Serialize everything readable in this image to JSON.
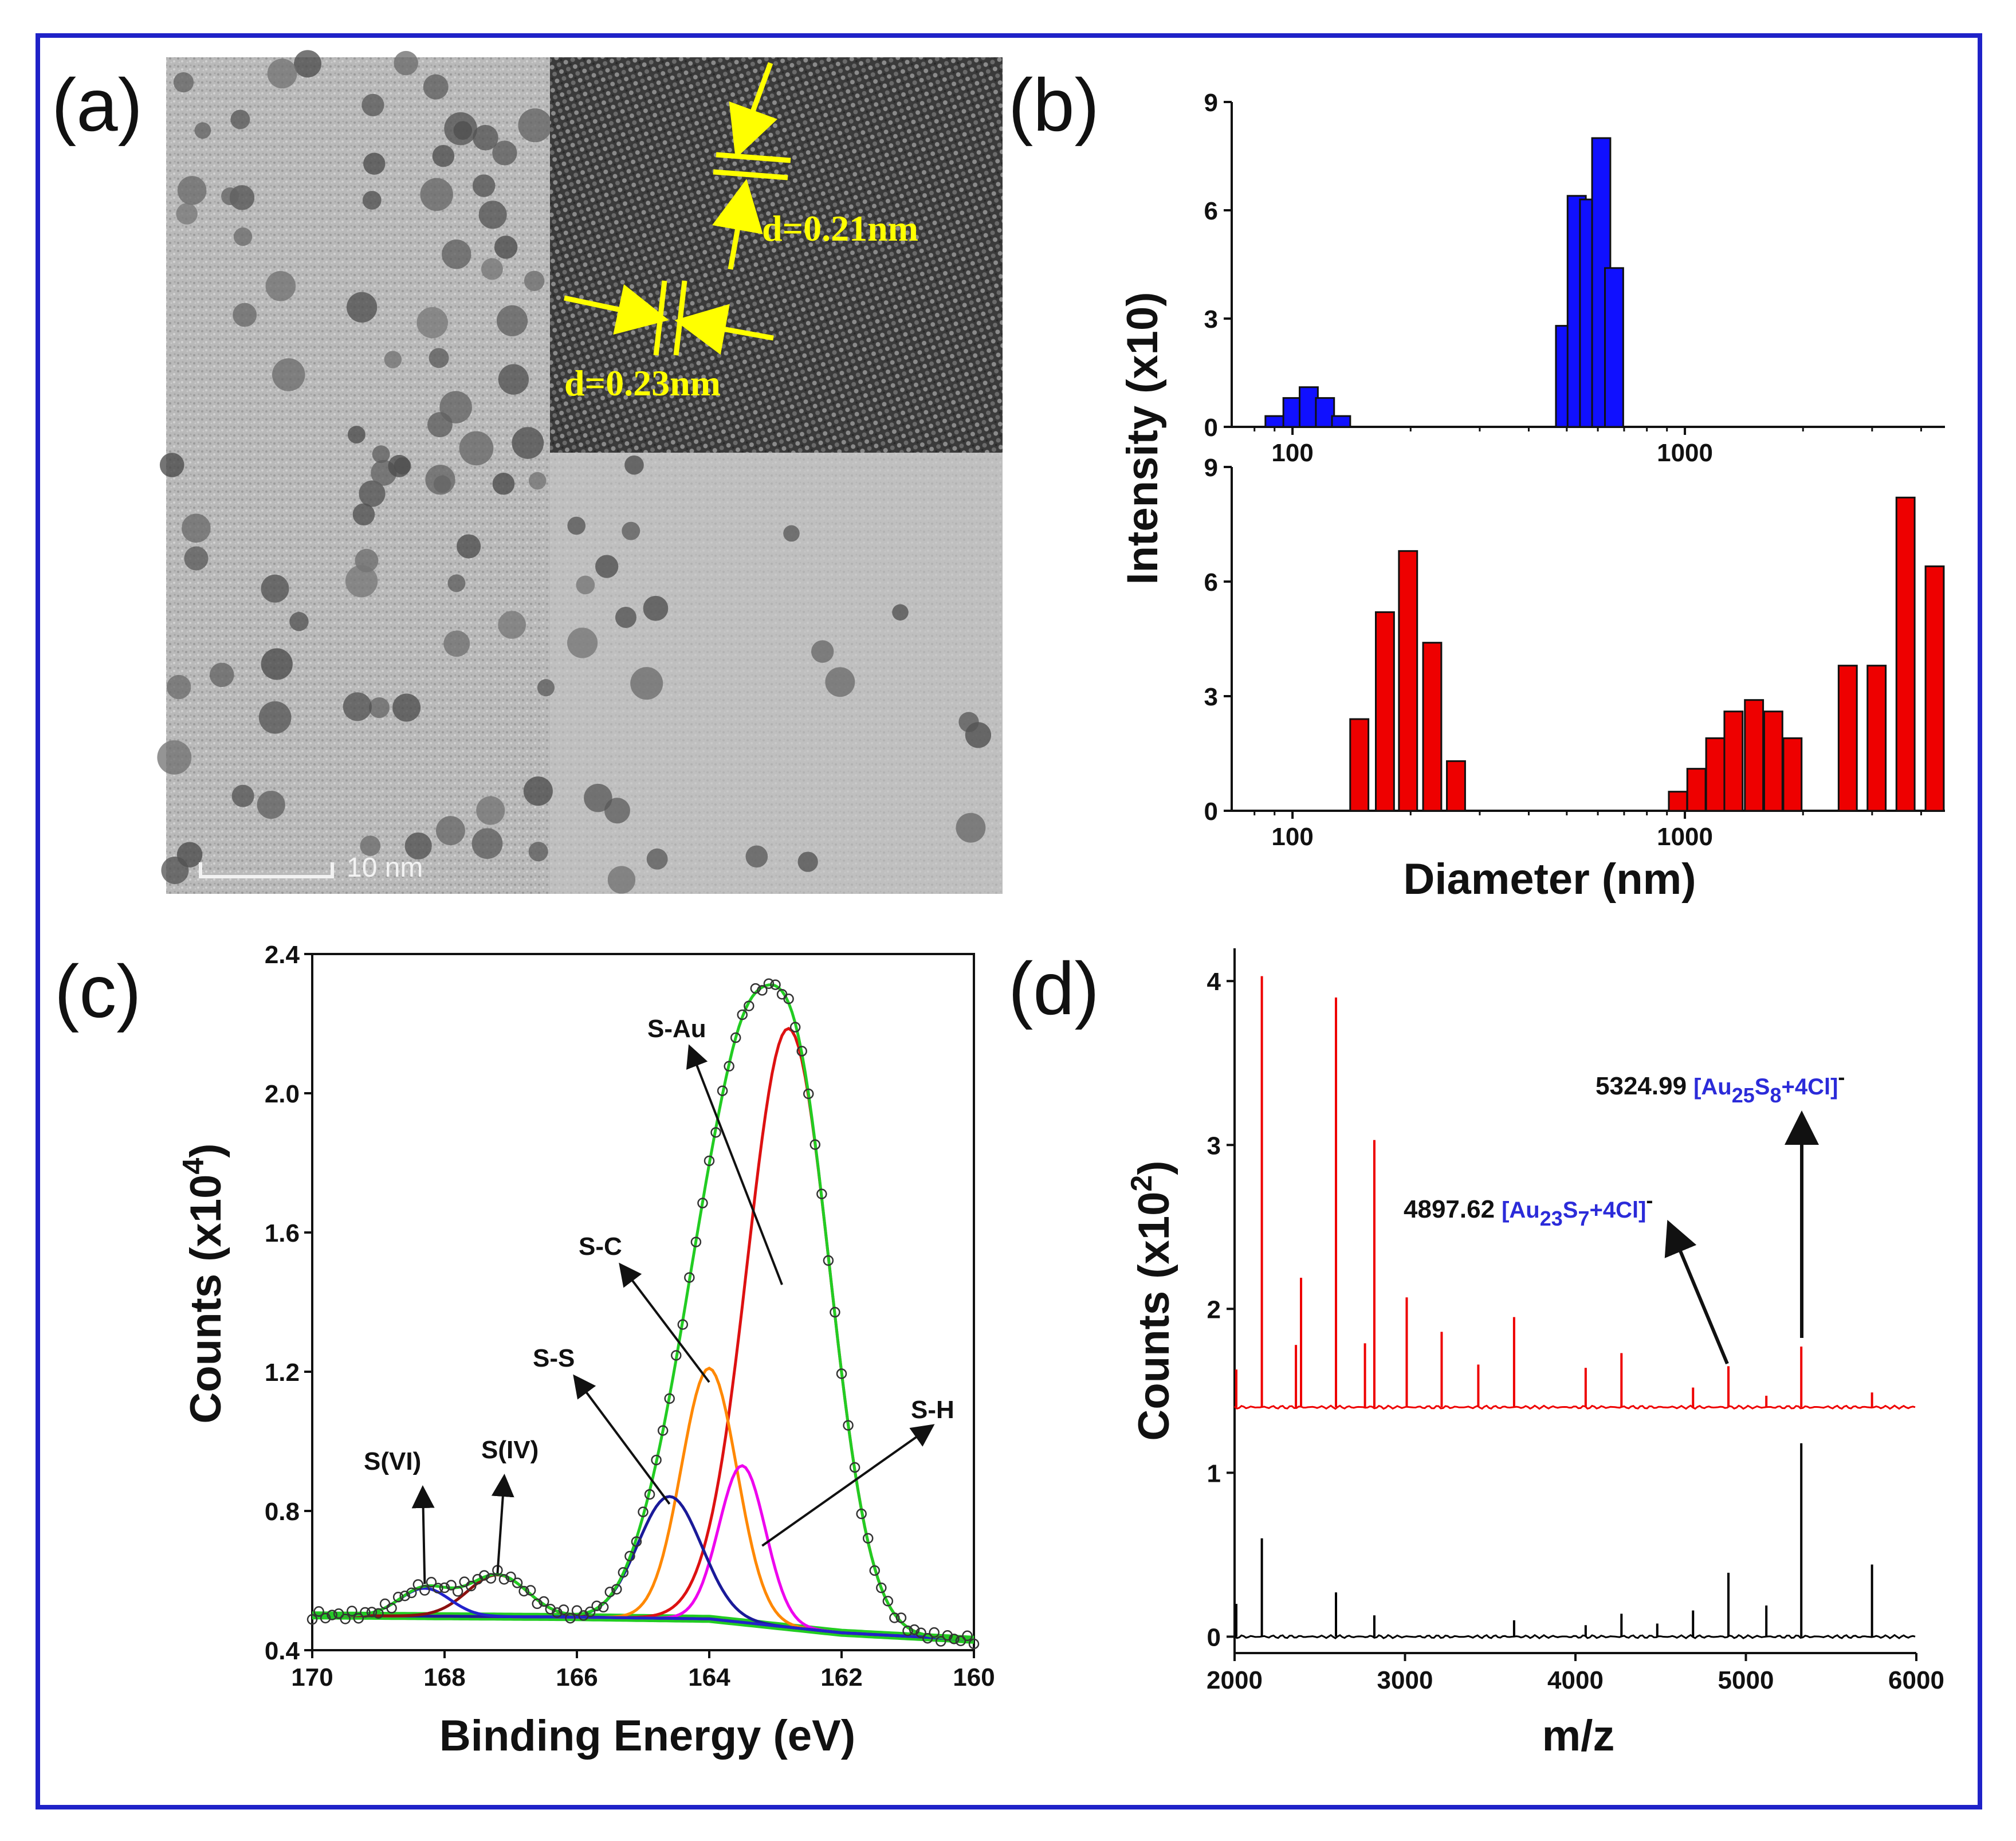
{
  "colors": {
    "frame": "#1f22c8",
    "blue_bar": "#1010ff",
    "red_bar": "#ee0000",
    "ms_blue": "#2b2bd9",
    "fit_green": "#22cc22",
    "s_au": "#dd1111",
    "s_c": "#ff8800",
    "s_h": "#ee00ee",
    "s_s": "#1a1a99",
    "s_iv": "#8b1010",
    "s_vi": "#2222cc",
    "baseline_black": "#000000"
  },
  "panels": {
    "a": {
      "label": "(a)",
      "scale_bar": "10 nm",
      "d1": "d=0.21nm",
      "d2": "d=0.23nm"
    },
    "b": {
      "label": "(b)",
      "ylabel": "Intensity (x10)",
      "xlabel": "Diameter (nm)"
    },
    "c": {
      "label": "(c)",
      "xlabel": "Binding Energy (eV)",
      "ylabel_main": "Counts (x10",
      "ylabel_sup": "4",
      "ylabel_end": ")",
      "peaks": {
        "s_au": "S-Au",
        "s_c": "S-C",
        "s_s": "S-S",
        "s_h": "S-H",
        "s_iv": "S(IV)",
        "s_vi": "S(VI)"
      }
    },
    "d": {
      "label": "(d)",
      "xlabel": "m/z",
      "ylabel_main": "Counts (x10",
      "ylabel_sup": "2",
      "ylabel_end": ")",
      "ann1_value": "5324.99",
      "ann1_open": "[Au",
      "ann1_sub1": "25",
      "ann1_mid": "S",
      "ann1_sub2": "8",
      "ann1_close": "+4Cl]",
      "ann1_sup": "-",
      "ann2_value": "4897.62",
      "ann2_open": "[Au",
      "ann2_sub1": "23",
      "ann2_mid": "S",
      "ann2_sub2": "7",
      "ann2_close": "+4Cl]",
      "ann2_sup": "-"
    }
  },
  "chart_data": [
    {
      "id": "b_top",
      "type": "bar",
      "xscale": "log",
      "title": "",
      "xlabel": "",
      "ylabel": "Intensity (x10)",
      "xlim": [
        70,
        4600
      ],
      "ylim": [
        0,
        9
      ],
      "xticks": [
        100,
        1000
      ],
      "xtick_labels": [
        "100",
        "1000"
      ],
      "yticks": [
        0,
        3,
        6,
        9
      ],
      "ytick_labels": [
        "0",
        "3",
        "6",
        "9"
      ],
      "series": [
        {
          "name": "blue",
          "bars": [
            {
              "x": 90,
              "y": 0.3
            },
            {
              "x": 100,
              "y": 0.8
            },
            {
              "x": 110,
              "y": 1.1
            },
            {
              "x": 121,
              "y": 0.8
            },
            {
              "x": 133,
              "y": 0.3
            },
            {
              "x": 495,
              "y": 2.8
            },
            {
              "x": 530,
              "y": 6.4
            },
            {
              "x": 570,
              "y": 6.3
            },
            {
              "x": 612,
              "y": 8.0
            },
            {
              "x": 660,
              "y": 4.4
            }
          ]
        }
      ]
    },
    {
      "id": "b_bottom",
      "type": "bar",
      "xscale": "log",
      "title": "",
      "xlabel": "Diameter (nm)",
      "ylabel": "Intensity (x10)",
      "xlim": [
        70,
        4600
      ],
      "ylim": [
        0,
        9
      ],
      "xticks": [
        100,
        1000
      ],
      "xtick_labels": [
        "100",
        "1000"
      ],
      "yticks": [
        0,
        3,
        6,
        9
      ],
      "ytick_labels": [
        "0",
        "3",
        "6",
        "9"
      ],
      "series": [
        {
          "name": "red",
          "bars": [
            {
              "x": 148,
              "y": 2.4
            },
            {
              "x": 172,
              "y": 5.2
            },
            {
              "x": 197,
              "y": 6.8
            },
            {
              "x": 227,
              "y": 4.4
            },
            {
              "x": 261,
              "y": 1.3
            },
            {
              "x": 960,
              "y": 0.5
            },
            {
              "x": 1070,
              "y": 1.1
            },
            {
              "x": 1195,
              "y": 1.9
            },
            {
              "x": 1330,
              "y": 2.6
            },
            {
              "x": 1500,
              "y": 2.9
            },
            {
              "x": 1680,
              "y": 2.6
            },
            {
              "x": 1880,
              "y": 1.9
            },
            {
              "x": 2600,
              "y": 3.8
            },
            {
              "x": 3080,
              "y": 3.8
            },
            {
              "x": 3650,
              "y": 8.2
            },
            {
              "x": 4330,
              "y": 6.4
            }
          ]
        }
      ]
    },
    {
      "id": "c",
      "type": "line",
      "title": "",
      "xlabel": "Binding Energy (eV)",
      "ylabel": "Counts (x10^4)",
      "xlim": [
        170,
        160
      ],
      "ylim": [
        0.4,
        2.4
      ],
      "xticks": [
        170,
        168,
        166,
        164,
        162,
        160
      ],
      "xtick_labels": [
        "170",
        "168",
        "166",
        "164",
        "162",
        "160"
      ],
      "yticks": [
        0.4,
        0.8,
        1.2,
        1.6,
        2.0,
        2.4
      ],
      "ytick_labels": [
        "0.4",
        "0.8",
        "1.2",
        "1.6",
        "2.0",
        "2.4"
      ],
      "background": [
        [
          170,
          0.5
        ],
        [
          166,
          0.495
        ],
        [
          164,
          0.49
        ],
        [
          162,
          0.45
        ],
        [
          160,
          0.43
        ]
      ],
      "components": [
        {
          "name": "S-Au",
          "center": 162.8,
          "amp": 1.72,
          "sigma": 0.62
        },
        {
          "name": "S-C",
          "center": 164.0,
          "amp": 0.72,
          "sigma": 0.42
        },
        {
          "name": "S-H",
          "center": 163.5,
          "amp": 0.45,
          "sigma": 0.35
        },
        {
          "name": "S-S",
          "center": 164.6,
          "amp": 0.35,
          "sigma": 0.48
        },
        {
          "name": "S(IV)",
          "center": 167.2,
          "amp": 0.12,
          "sigma": 0.45
        },
        {
          "name": "S(VI)",
          "center": 168.3,
          "amp": 0.08,
          "sigma": 0.38
        }
      ],
      "annotation_targets": [
        {
          "name": "S-Au",
          "x": 162.9,
          "y": 1.45
        },
        {
          "name": "S-C",
          "x": 164.0,
          "y": 1.17
        },
        {
          "name": "S-S",
          "x": 164.6,
          "y": 0.82
        },
        {
          "name": "S-H",
          "x": 163.2,
          "y": 0.7
        },
        {
          "name": "S(IV)",
          "x": 167.2,
          "y": 0.62
        },
        {
          "name": "S(VI)",
          "x": 168.3,
          "y": 0.59
        }
      ]
    },
    {
      "id": "d",
      "type": "line",
      "title": "",
      "xlabel": "m/z",
      "ylabel": "Counts (x10^2)",
      "xlim": [
        2000,
        6000
      ],
      "ylim": [
        -0.1,
        4.2
      ],
      "xticks": [
        2000,
        3000,
        4000,
        5000,
        6000
      ],
      "xtick_labels": [
        "2000",
        "3000",
        "4000",
        "5000",
        "6000"
      ],
      "yticks": [
        0,
        1,
        2,
        3,
        4
      ],
      "ytick_labels": [
        "0",
        "1",
        "2",
        "3",
        "4"
      ],
      "series": [
        {
          "name": "red",
          "baseline": 1.4,
          "peaks": [
            [
              2010,
              1.63
            ],
            [
              2160,
              4.03
            ],
            [
              2360,
              1.78
            ],
            [
              2390,
              2.19
            ],
            [
              2595,
              3.9
            ],
            [
              2765,
              1.79
            ],
            [
              2820,
              3.03
            ],
            [
              3010,
              2.07
            ],
            [
              3215,
              1.86
            ],
            [
              3430,
              1.66
            ],
            [
              3640,
              1.95
            ],
            [
              4060,
              1.64
            ],
            [
              4270,
              1.73
            ],
            [
              4690,
              1.52
            ],
            [
              4897.62,
              1.65
            ],
            [
              5120,
              1.47
            ],
            [
              5324.99,
              1.77
            ],
            [
              5740,
              1.49
            ]
          ]
        },
        {
          "name": "black",
          "baseline": 0.0,
          "peaks": [
            [
              2010,
              0.2
            ],
            [
              2160,
              0.6
            ],
            [
              2595,
              0.27
            ],
            [
              2820,
              0.13
            ],
            [
              3640,
              0.1
            ],
            [
              4060,
              0.07
            ],
            [
              4270,
              0.14
            ],
            [
              4480,
              0.08
            ],
            [
              4690,
              0.16
            ],
            [
              4897.62,
              0.39
            ],
            [
              5120,
              0.19
            ],
            [
              5324.99,
              1.18
            ],
            [
              5740,
              0.44
            ]
          ]
        }
      ]
    }
  ]
}
